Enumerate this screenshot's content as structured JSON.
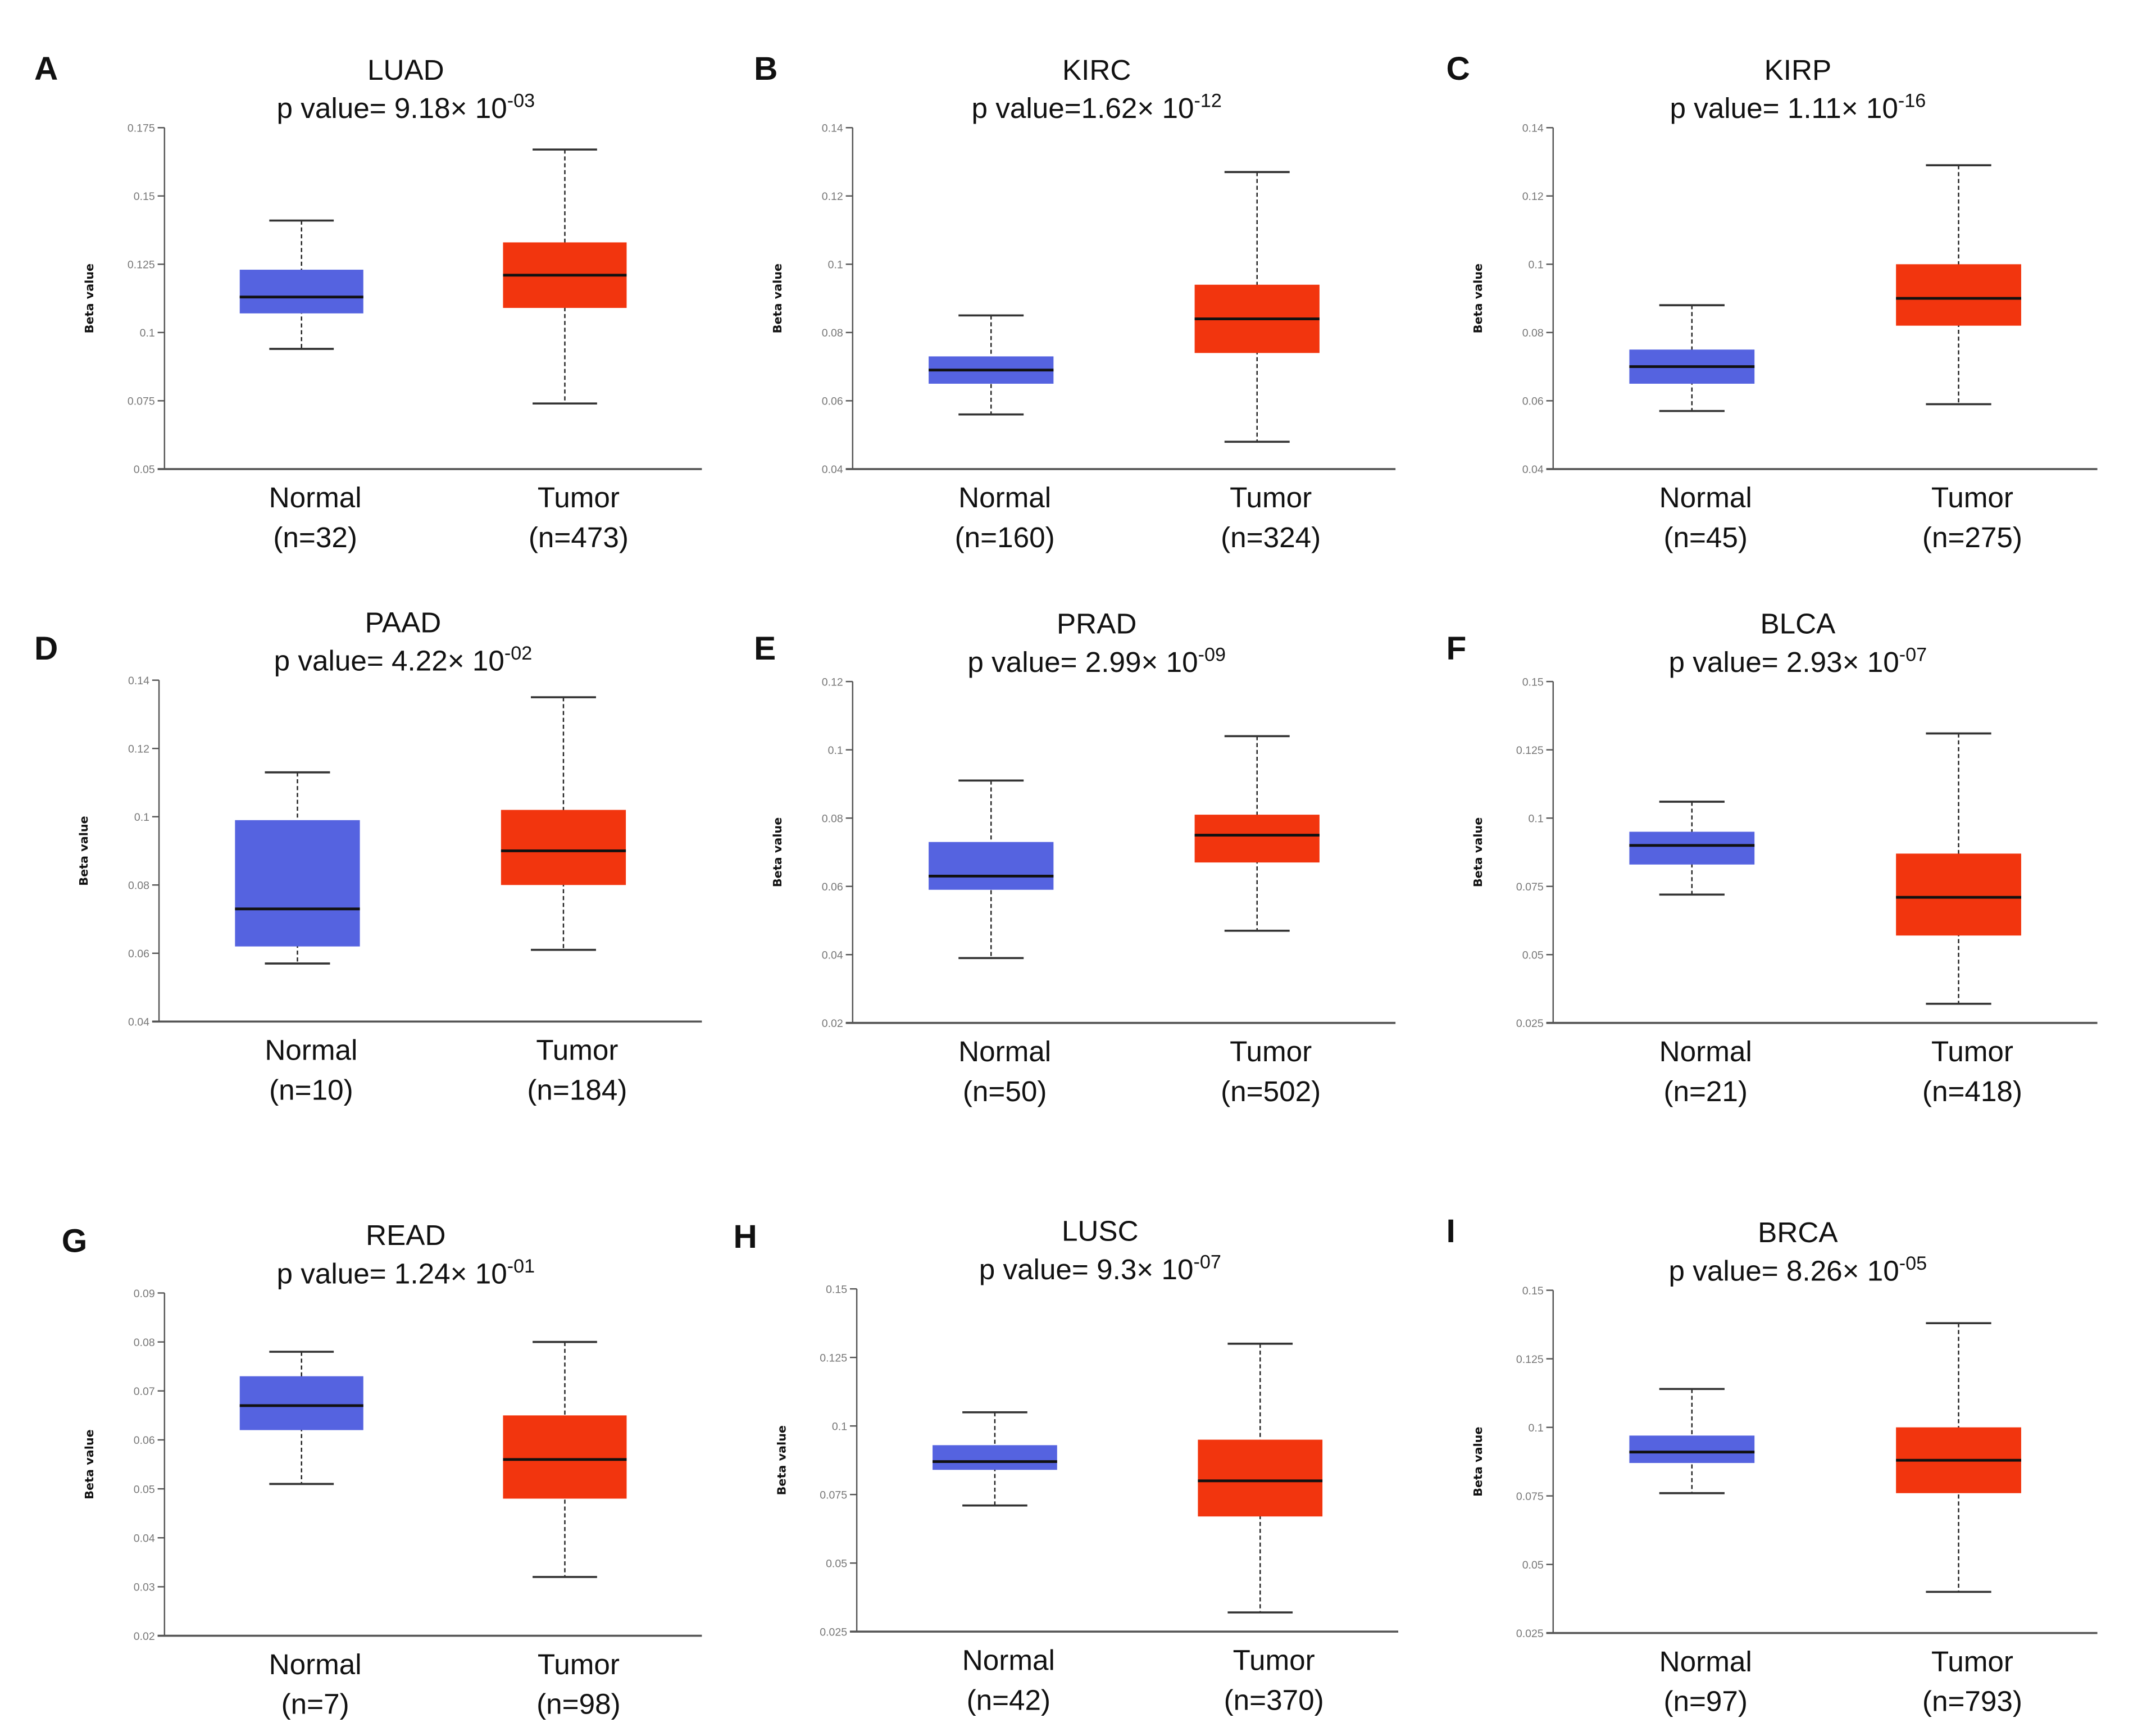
{
  "colors": {
    "normal": "#5563e0",
    "tumor": "#f2350e",
    "median": "#111111"
  },
  "chart_data": [
    {
      "panel": "A",
      "type": "box",
      "title": "LUAD",
      "p_prefix": "p value= 9.18× 10",
      "p_exp": "-03",
      "ylabel": "Beta value",
      "ylim": [
        0.05,
        0.175
      ],
      "ticks": [
        "0.05",
        "0.075",
        "0.1",
        "0.125",
        "0.15",
        "0.175"
      ],
      "groups": [
        {
          "name": "Normal",
          "n": "(n=32)",
          "min": 0.094,
          "q1": 0.107,
          "median": 0.113,
          "q3": 0.123,
          "max": 0.141
        },
        {
          "name": "Tumor",
          "n": "(n=473)",
          "min": 0.074,
          "q1": 0.109,
          "median": 0.121,
          "q3": 0.133,
          "max": 0.167
        }
      ]
    },
    {
      "panel": "B",
      "type": "box",
      "title": "KIRC",
      "p_prefix": "p value=1.62× 10",
      "p_exp": "-12",
      "ylabel": "Beta value",
      "ylim": [
        0.04,
        0.14
      ],
      "ticks": [
        "0.04",
        "0.06",
        "0.08",
        "0.1",
        "0.12",
        "0.14"
      ],
      "groups": [
        {
          "name": "Normal",
          "n": "(n=160)",
          "min": 0.056,
          "q1": 0.065,
          "median": 0.069,
          "q3": 0.073,
          "max": 0.085
        },
        {
          "name": "Tumor",
          "n": "(n=324)",
          "min": 0.048,
          "q1": 0.074,
          "median": 0.084,
          "q3": 0.094,
          "max": 0.127
        }
      ]
    },
    {
      "panel": "C",
      "type": "box",
      "title": "KIRP",
      "p_prefix": "p value= 1.11× 10",
      "p_exp": "-16",
      "ylabel": "Beta value",
      "ylim": [
        0.04,
        0.14
      ],
      "ticks": [
        "0.04",
        "0.06",
        "0.08",
        "0.1",
        "0.12",
        "0.14"
      ],
      "groups": [
        {
          "name": "Normal",
          "n": "(n=45)",
          "min": 0.057,
          "q1": 0.065,
          "median": 0.07,
          "q3": 0.075,
          "max": 0.088
        },
        {
          "name": "Tumor",
          "n": "(n=275)",
          "min": 0.059,
          "q1": 0.082,
          "median": 0.09,
          "q3": 0.1,
          "max": 0.129
        }
      ]
    },
    {
      "panel": "D",
      "type": "box",
      "title": "PAAD",
      "p_prefix": "p value= 4.22× 10",
      "p_exp": "-02",
      "ylabel": "Beta value",
      "ylim": [
        0.04,
        0.14
      ],
      "ticks": [
        "0.04",
        "0.06",
        "0.08",
        "0.1",
        "0.12",
        "0.14"
      ],
      "groups": [
        {
          "name": "Normal",
          "n": "(n=10)",
          "min": 0.057,
          "q1": 0.062,
          "median": 0.073,
          "q3": 0.099,
          "max": 0.113
        },
        {
          "name": "Tumor",
          "n": "(n=184)",
          "min": 0.061,
          "q1": 0.08,
          "median": 0.09,
          "q3": 0.102,
          "max": 0.135
        }
      ]
    },
    {
      "panel": "E",
      "type": "box",
      "title": "PRAD",
      "p_prefix": "p value= 2.99× 10",
      "p_exp": "-09",
      "ylabel": "Beta value",
      "ylim": [
        0.02,
        0.12
      ],
      "ticks": [
        "0.02",
        "0.04",
        "0.06",
        "0.08",
        "0.1",
        "0.12"
      ],
      "groups": [
        {
          "name": "Normal",
          "n": "(n=50)",
          "min": 0.039,
          "q1": 0.059,
          "median": 0.063,
          "q3": 0.073,
          "max": 0.091
        },
        {
          "name": "Tumor",
          "n": "(n=502)",
          "min": 0.047,
          "q1": 0.067,
          "median": 0.075,
          "q3": 0.081,
          "max": 0.104
        }
      ]
    },
    {
      "panel": "F",
      "type": "box",
      "title": "BLCA",
      "p_prefix": "p value= 2.93× 10",
      "p_exp": "-07",
      "ylabel": "Beta value",
      "ylim": [
        0.025,
        0.15
      ],
      "ticks": [
        "0.025",
        "0.05",
        "0.075",
        "0.1",
        "0.125",
        "0.15"
      ],
      "groups": [
        {
          "name": "Normal",
          "n": "(n=21)",
          "min": 0.072,
          "q1": 0.083,
          "median": 0.09,
          "q3": 0.095,
          "max": 0.106
        },
        {
          "name": "Tumor",
          "n": "(n=418)",
          "min": 0.032,
          "q1": 0.057,
          "median": 0.071,
          "q3": 0.087,
          "max": 0.131
        }
      ]
    },
    {
      "panel": "G",
      "type": "box",
      "title": "READ",
      "p_prefix": "p value= 1.24× 10",
      "p_exp": "-01",
      "ylabel": "Beta value",
      "ylim": [
        0.02,
        0.09
      ],
      "ticks": [
        "0.02",
        "0.03",
        "0.04",
        "0.05",
        "0.06",
        "0.07",
        "0.08",
        "0.09"
      ],
      "groups": [
        {
          "name": "Normal",
          "n": "(n=7)",
          "min": 0.051,
          "q1": 0.062,
          "median": 0.067,
          "q3": 0.073,
          "max": 0.078
        },
        {
          "name": "Tumor",
          "n": "(n=98)",
          "min": 0.032,
          "q1": 0.048,
          "median": 0.056,
          "q3": 0.065,
          "max": 0.08
        }
      ]
    },
    {
      "panel": "H",
      "type": "box",
      "title": "LUSC",
      "p_prefix": "p value= 9.3× 10",
      "p_exp": "-07",
      "ylabel": "Beta value",
      "ylim": [
        0.025,
        0.15
      ],
      "ticks": [
        "0.025",
        "0.05",
        "0.075",
        "0.1",
        "0.125",
        "0.15"
      ],
      "groups": [
        {
          "name": "Normal",
          "n": "(n=42)",
          "min": 0.071,
          "q1": 0.084,
          "median": 0.087,
          "q3": 0.093,
          "max": 0.105
        },
        {
          "name": "Tumor",
          "n": "(n=370)",
          "min": 0.032,
          "q1": 0.067,
          "median": 0.08,
          "q3": 0.095,
          "max": 0.13
        }
      ]
    },
    {
      "panel": "I",
      "type": "box",
      "title": "BRCA",
      "p_prefix": "p value= 8.26× 10",
      "p_exp": "-05",
      "ylabel": "Beta value",
      "ylim": [
        0.025,
        0.15
      ],
      "ticks": [
        "0.025",
        "0.05",
        "0.075",
        "0.1",
        "0.125",
        "0.15"
      ],
      "groups": [
        {
          "name": "Normal",
          "n": "(n=97)",
          "min": 0.076,
          "q1": 0.087,
          "median": 0.091,
          "q3": 0.097,
          "max": 0.114
        },
        {
          "name": "Tumor",
          "n": "(n=793)",
          "min": 0.04,
          "q1": 0.076,
          "median": 0.088,
          "q3": 0.1,
          "max": 0.138
        }
      ]
    }
  ]
}
